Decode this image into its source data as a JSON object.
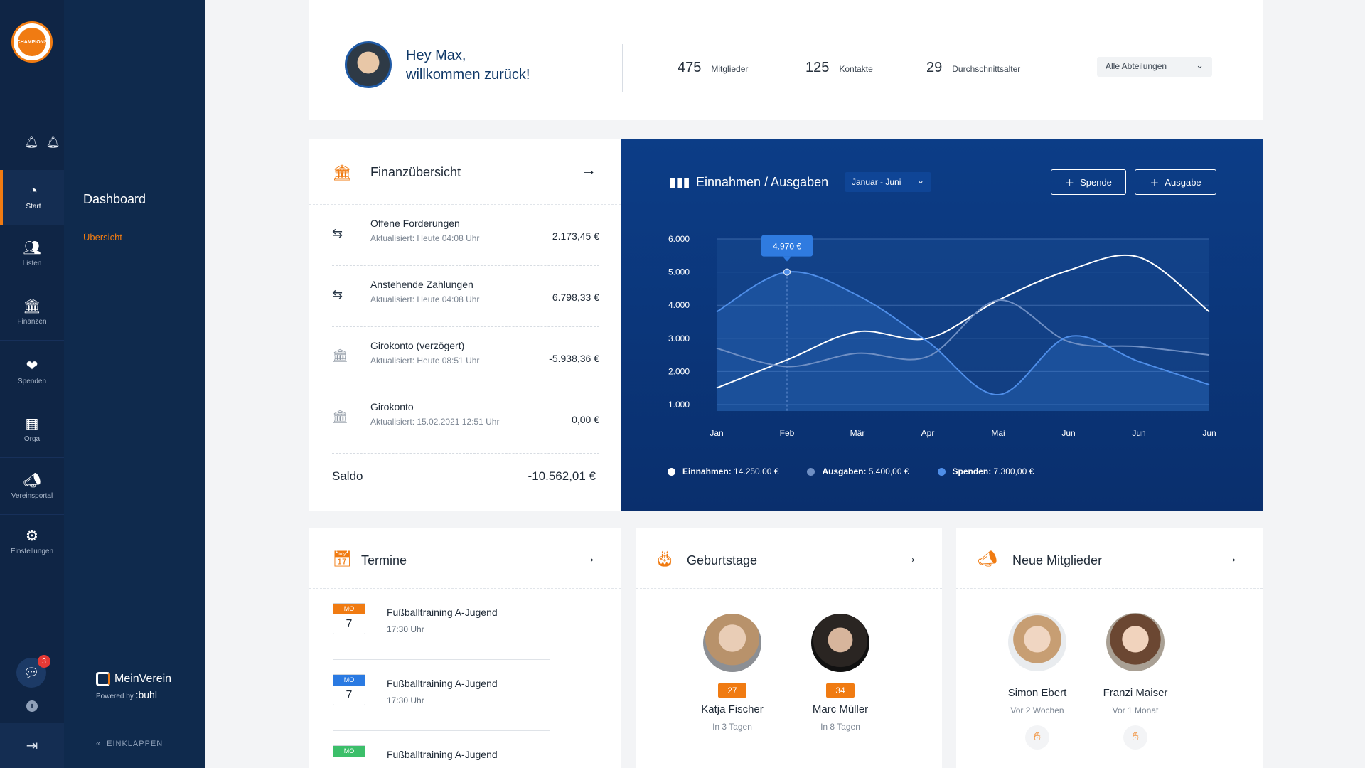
{
  "rail": {
    "logo_text": "CHAMPIONS",
    "items": [
      {
        "label": "Start",
        "icon": "dashboard-gauge-icon"
      },
      {
        "label": "Listen",
        "icon": "users-icon"
      },
      {
        "label": "Finanzen",
        "icon": "bank-icon"
      },
      {
        "label": "Spenden",
        "icon": "donation-heart-icon"
      },
      {
        "label": "Orga",
        "icon": "calendar-grid-icon"
      },
      {
        "label": "Vereinsportal",
        "icon": "megaphone-icon"
      },
      {
        "label": "Einstellungen",
        "icon": "gear-icon"
      }
    ],
    "chat_badge": "3"
  },
  "subnav": {
    "title": "Dashboard",
    "link": "Übersicht",
    "brand_name": "MeinVerein",
    "brand_powered": "Powered by",
    "brand_partner": ":buhl",
    "collapse": "EINKLAPPEN"
  },
  "header": {
    "greeting_line1": "Hey Max,",
    "greeting_line2": "willkommen zurück!",
    "stats": [
      {
        "value": "475",
        "label": "Mitglieder"
      },
      {
        "value": "125",
        "label": "Kontakte"
      },
      {
        "value": "29",
        "label": "Durchschnittsalter"
      }
    ],
    "department_select": "Alle Abteilungen"
  },
  "finance": {
    "title": "Finanzübersicht",
    "rows": [
      {
        "title": "Offene Forderungen",
        "sub": "Aktualisiert: Heute 04:08 Uhr",
        "amount": "2.173,45 €",
        "icon": "transfer-arrows-icon"
      },
      {
        "title": "Anstehende Zahlungen",
        "sub": "Aktualisiert: Heute 04:08 Uhr",
        "amount": "6.798,33 €",
        "icon": "transfer-arrows-icon"
      },
      {
        "title": "Girokonto (verzögert)",
        "sub": "Aktualisiert: Heute 08:51 Uhr",
        "amount": "-5.938,36 €",
        "icon": "bank-icon"
      },
      {
        "title": "Girokonto",
        "sub": "Aktualisiert: 15.02.2021 12:51 Uhr",
        "amount": "0,00 €",
        "icon": "bank-icon"
      }
    ],
    "saldo_label": "Saldo",
    "saldo_amount": "-10.562,01 €"
  },
  "chart_data": {
    "type": "line",
    "title": "Einnahmen / Ausgaben",
    "range_select": "Januar - Juni",
    "buttons": [
      "Spende",
      "Ausgabe"
    ],
    "categories": [
      "Jan",
      "Feb",
      "Mär",
      "Apr",
      "Mai",
      "Jun",
      "Jun",
      "Jun"
    ],
    "yticks": [
      "6.000",
      "5.000",
      "4.000",
      "3.000",
      "2.000",
      "1.000"
    ],
    "ylim": [
      1000,
      6000
    ],
    "tooltip": "4.970 €",
    "series": [
      {
        "name": "Einnahmen",
        "total": "14.250,00 €",
        "color": "#ffffff",
        "values": [
          1500,
          2350,
          3200,
          3000,
          4150,
          5050,
          5450,
          3800
        ]
      },
      {
        "name": "Ausgaben",
        "total": "5.400,00 €",
        "color": "#6f8fc4",
        "values": [
          2700,
          2150,
          2550,
          2450,
          4150,
          2900,
          2750,
          2500
        ]
      },
      {
        "name": "Spenden",
        "total": "7.300,00 €",
        "color": "#4f8ee8",
        "values": [
          3800,
          5000,
          4300,
          2900,
          1300,
          3050,
          2300,
          1600
        ]
      }
    ],
    "grid": true,
    "legend": "bottom-left"
  },
  "termine": {
    "title": "Termine",
    "events": [
      {
        "weekday": "MO",
        "day": "7",
        "title": "Fußballtraining A-Jugend",
        "time": "17:30 Uhr",
        "color": "#f07b12"
      },
      {
        "weekday": "MO",
        "day": "7",
        "title": "Fußballtraining A-Jugend",
        "time": "17:30 Uhr",
        "color": "#2a7ae2"
      },
      {
        "weekday": "MO",
        "day": "",
        "title": "Fußballtraining A-Jugend",
        "time": "",
        "color": "#3cbf6a"
      }
    ]
  },
  "birthdays": {
    "title": "Geburtstage",
    "people": [
      {
        "name": "Katja Fischer",
        "age": "27",
        "when": "In 3 Tagen"
      },
      {
        "name": "Marc Müller",
        "age": "34",
        "when": "In 8 Tagen"
      }
    ]
  },
  "new_members": {
    "title": "Neue Mitglieder",
    "people": [
      {
        "name": "Simon Ebert",
        "when": "Vor 2 Wochen"
      },
      {
        "name": "Franzi Maiser",
        "when": "Vor 1 Monat"
      }
    ]
  }
}
